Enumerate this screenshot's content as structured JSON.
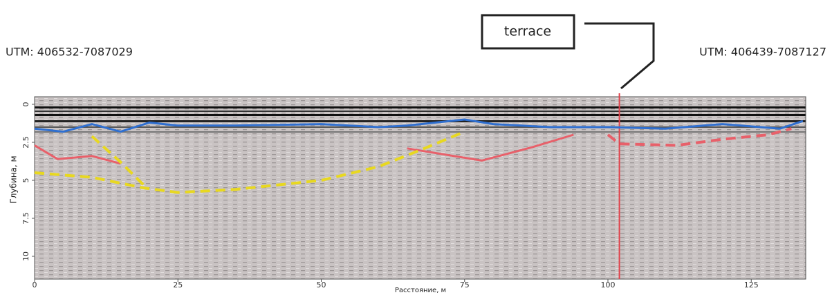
{
  "chart_data": {
    "type": "line",
    "labels": {
      "left": "UTM: 406532-7087029",
      "right": "UTM: 406439-7087127",
      "callout": "terrace"
    },
    "x_label": "Расстояние, м",
    "y_label": "Глубина, м",
    "xlim": [
      0,
      134.5
    ],
    "ylim": [
      -0.5,
      11.5
    ],
    "y_inverted": true,
    "xticks": [
      0,
      25,
      50,
      75,
      100,
      125
    ],
    "yticks": [
      0,
      2.5,
      5,
      7.5,
      10
    ],
    "vline": {
      "x": 102,
      "color": "#e0404a"
    },
    "series": [
      {
        "color": "#2f6fd0",
        "dashed": false,
        "x": [
          0,
          5,
          10,
          15,
          20,
          25,
          35,
          50,
          60,
          65,
          75,
          80,
          90,
          100,
          110,
          120,
          130,
          134
        ],
        "values": [
          1.6,
          1.8,
          1.3,
          1.8,
          1.2,
          1.4,
          1.4,
          1.3,
          1.5,
          1.4,
          1.0,
          1.3,
          1.5,
          1.5,
          1.6,
          1.3,
          1.6,
          1.1
        ]
      },
      {
        "color": "#e8606a",
        "dashed": false,
        "x": [
          0,
          4,
          10,
          15,
          null,
          65,
          78,
          87,
          94
        ],
        "values": [
          2.7,
          3.6,
          3.4,
          3.9,
          null,
          2.9,
          3.7,
          2.8,
          2.0
        ]
      },
      {
        "color": "#e8606a",
        "dashed": true,
        "x": [
          100,
          102,
          112,
          120,
          128,
          132
        ],
        "values": [
          2.0,
          2.6,
          2.7,
          2.3,
          2.0,
          1.6
        ]
      },
      {
        "color": "#e8d820",
        "dashed": true,
        "x": [
          0,
          10,
          19,
          25,
          35,
          50,
          60,
          68,
          75,
          null,
          10,
          15,
          19
        ],
        "values": [
          4.5,
          4.8,
          5.5,
          5.8,
          5.6,
          5.0,
          4.1,
          2.9,
          1.8,
          null,
          2.1,
          3.8,
          5.3
        ]
      }
    ]
  }
}
